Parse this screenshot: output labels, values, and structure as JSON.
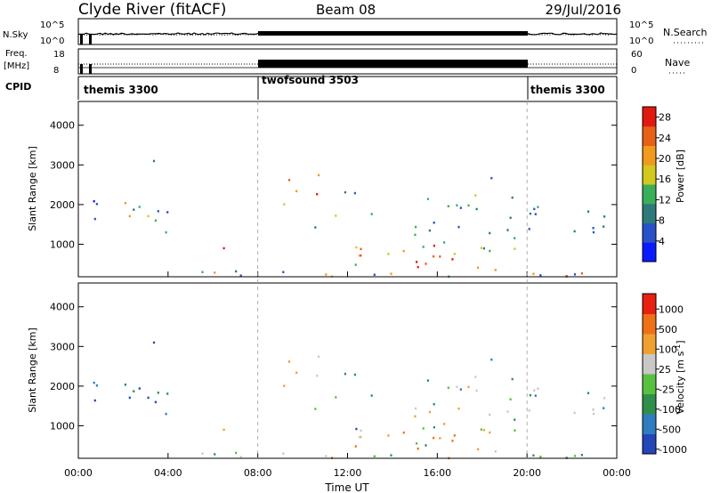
{
  "header": {
    "station": "Clyde River (fitACF)",
    "beam": "Beam 08",
    "date": "29/Jul/2016"
  },
  "chart_data": [
    {
      "type": "line",
      "panel": "noise",
      "left_label": "N.Sky",
      "right_label": "N.Search",
      "left_ticks": [
        "10^5",
        "10^0"
      ],
      "right_ticks": [
        "10^5",
        "10^0"
      ],
      "y_scale": "log"
    },
    {
      "type": "line",
      "panel": "frequency-nave",
      "left_label_lines": [
        "Freq.",
        "[MHz]"
      ],
      "right_label": "Nave",
      "left_ticks": [
        18,
        8
      ],
      "right_ticks": [
        60,
        0
      ]
    },
    {
      "type": "table",
      "panel": "cpid",
      "label": "CPID",
      "segments": [
        {
          "name": "themis 3300",
          "start": "00:00",
          "end": "08:00"
        },
        {
          "name": "twofsound 3503",
          "start": "08:00",
          "end": "20:00"
        },
        {
          "name": "themis 3300",
          "start": "20:00",
          "end": "00:00"
        }
      ]
    },
    {
      "type": "heatmap",
      "panel": "power",
      "ylabel": "Slant Range [km]",
      "yticks": [
        1000,
        2000,
        3000,
        4000
      ],
      "ylim": [
        180,
        4600
      ],
      "colorbar": {
        "label": "Power [dB]",
        "ticks": [
          4,
          8,
          12,
          16,
          20,
          24,
          28
        ],
        "range": [
          0,
          30
        ],
        "colors": [
          "#0a1cff",
          "#2a52c8",
          "#2f7a78",
          "#3cae5a",
          "#d2c81e",
          "#f09a1e",
          "#e86018",
          "#e01a10"
        ]
      }
    },
    {
      "type": "heatmap",
      "panel": "velocity",
      "ylabel": "Slant Range [km]",
      "yticks": [
        1000,
        2000,
        3000,
        4000
      ],
      "ylim": [
        180,
        4600
      ],
      "xlabel": "Time UT",
      "xticks": [
        "00:00",
        "04:00",
        "08:00",
        "12:00",
        "16:00",
        "20:00",
        "00:00"
      ],
      "colorbar": {
        "label": "Velocity [m s",
        "label_sup": "-1",
        "label_end": "]",
        "ticks": [
          "1000",
          "500",
          "100",
          "25",
          "-25",
          "-100",
          "-500",
          "-1000"
        ],
        "colors": [
          "#2546b8",
          "#2f7cc0",
          "#2f8f4a",
          "#58c040",
          "#c8c8c8",
          "#f0a030",
          "#f07018",
          "#e82010"
        ]
      }
    }
  ]
}
